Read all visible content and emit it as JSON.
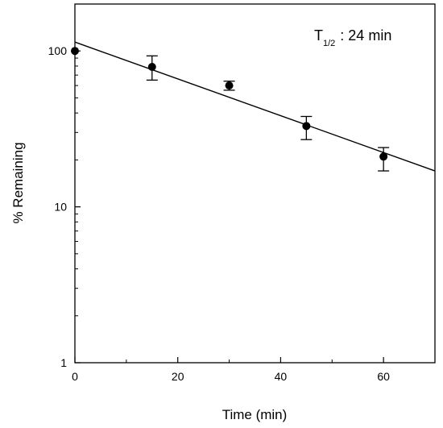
{
  "chart_data": {
    "type": "scatter",
    "xlabel": "Time (min)",
    "ylabel": "% Remaining",
    "xlim": [
      0,
      70
    ],
    "ylim": [
      1,
      200
    ],
    "y_scale": "log",
    "grid": false,
    "x_ticks": [
      0,
      20,
      40,
      60
    ],
    "x_tick_labels": [
      "0",
      "20",
      "40",
      "60"
    ],
    "y_ticks": [
      1,
      10,
      100
    ],
    "y_tick_labels": [
      "1",
      "10",
      "100"
    ],
    "annotation": {
      "main": "T",
      "sub": "1/2",
      "rest": ": 24 min"
    },
    "points": [
      {
        "x": 0,
        "y": 100,
        "err_low": null,
        "err_high": null
      },
      {
        "x": 15,
        "y": 79,
        "err_low": 65,
        "err_high": 93
      },
      {
        "x": 30,
        "y": 60,
        "err_low": 56,
        "err_high": 64
      },
      {
        "x": 45,
        "y": 33,
        "err_low": 27,
        "err_high": 38
      },
      {
        "x": 60,
        "y": 21,
        "err_low": 17,
        "err_high": 24
      }
    ],
    "fit_line": {
      "x": [
        0,
        70
      ],
      "y": [
        114,
        17
      ]
    },
    "colors": {
      "marks": "#000000",
      "background": "#ffffff"
    }
  }
}
